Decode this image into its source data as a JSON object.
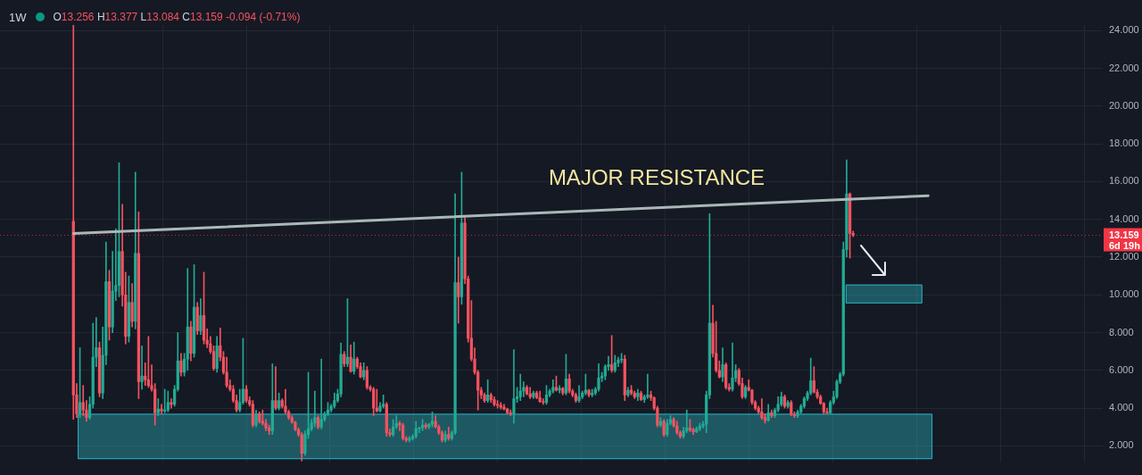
{
  "chart_data": {
    "type": "candlestick",
    "title": "1W",
    "categories": [
      null,
      null,
      null,
      null,
      null,
      null,
      null,
      null,
      null,
      null,
      null,
      null,
      null,
      null,
      null,
      null,
      null,
      null,
      null,
      null,
      null,
      null,
      null,
      null,
      null,
      null,
      null,
      null,
      null,
      null,
      null,
      null,
      null,
      null,
      null,
      null,
      null,
      null,
      null,
      null,
      null,
      null,
      null,
      null,
      null,
      null,
      null,
      null,
      null,
      null,
      null,
      null,
      null,
      null,
      null,
      null,
      null,
      null,
      null,
      null,
      null,
      null,
      null,
      null,
      null,
      null,
      null,
      null,
      null,
      null,
      null,
      null,
      null,
      null,
      null,
      null,
      null,
      null,
      null,
      null,
      null,
      null,
      null,
      null,
      null,
      null,
      null,
      null,
      null,
      null,
      null,
      null,
      null,
      null,
      null,
      null,
      null,
      null,
      null,
      null,
      null,
      null,
      null,
      null,
      null,
      null,
      null,
      null,
      null,
      null,
      null,
      null,
      null,
      null,
      null,
      null,
      null,
      null,
      null,
      null,
      null,
      null,
      null,
      null,
      null,
      null,
      null,
      null,
      null,
      null,
      null,
      null,
      null,
      null,
      null,
      null,
      null,
      null,
      null,
      null,
      null,
      null,
      null,
      null,
      null,
      null,
      null,
      null,
      null,
      null,
      null,
      null,
      null,
      null,
      null,
      null,
      null,
      null,
      null,
      null,
      null,
      null,
      null,
      null,
      null,
      null,
      null,
      null,
      null,
      null,
      null,
      null,
      null,
      null,
      null,
      null,
      null,
      null,
      null,
      null,
      null,
      null,
      null,
      null,
      null,
      null,
      null,
      null,
      null,
      null,
      null,
      null,
      null,
      null,
      null,
      null,
      null,
      null,
      null,
      null,
      null,
      null,
      null,
      null,
      null,
      null,
      null,
      null,
      null,
      null,
      null,
      null,
      null,
      null,
      null,
      null,
      null,
      null,
      null,
      null,
      null,
      null,
      null,
      null,
      null,
      null,
      null,
      null,
      null,
      null,
      null,
      null,
      null,
      null,
      null,
      null,
      null,
      null,
      null,
      null,
      null,
      null,
      null,
      null,
      null,
      null,
      null,
      null,
      null,
      null,
      null,
      null,
      null,
      null,
      null,
      null,
      null,
      null,
      null,
      null,
      null,
      null,
      null,
      null,
      null,
      null,
      null,
      null,
      null,
      null,
      null,
      null,
      null,
      null,
      null,
      null,
      null,
      null,
      null,
      null,
      null,
      null,
      null,
      null,
      null,
      null,
      null,
      null,
      null,
      null,
      null,
      null,
      null,
      null,
      null,
      null,
      null,
      null,
      null,
      null,
      null,
      null,
      null,
      null,
      null,
      null,
      null,
      null,
      null,
      null,
      null,
      null,
      null,
      null,
      null,
      null,
      null,
      null,
      null,
      null,
      null,
      null,
      null,
      null,
      null,
      null,
      null,
      null,
      null,
      null,
      null,
      null,
      null,
      null,
      null,
      null,
      null,
      null
    ],
    "ohlc": [
      null,
      null,
      null,
      null,
      null,
      null,
      null,
      null,
      null,
      null,
      null,
      null,
      null,
      null,
      null,
      null,
      null,
      null,
      null,
      null,
      null,
      null,
      [
        13.9,
        24.3,
        3.4,
        4.7
      ],
      [
        4.7,
        5.3,
        3.5,
        3.7
      ],
      [
        3.7,
        7.2,
        3.5,
        4.3
      ],
      [
        4.3,
        5.2,
        3.6,
        3.9
      ],
      [
        3.9,
        4.4,
        3.3,
        3.5
      ],
      [
        3.5,
        4.6,
        3.4,
        4.2
      ],
      [
        4.2,
        8.5,
        4.0,
        6.7
      ],
      [
        6.7,
        8.8,
        6.2,
        7.2
      ],
      [
        7.2,
        7.5,
        4.6,
        4.8
      ],
      [
        4.8,
        8.3,
        4.5,
        6.8
      ],
      [
        6.8,
        12.8,
        6.3,
        10.7
      ],
      [
        10.7,
        11.3,
        7.6,
        8.3
      ],
      [
        8.3,
        12.3,
        8.0,
        10.2
      ],
      [
        10.2,
        13.5,
        9.7,
        10.5
      ],
      [
        10.5,
        17.0,
        9.9,
        12.3
      ],
      [
        12.3,
        14.8,
        9.4,
        10.0
      ],
      [
        10.0,
        11.2,
        7.4,
        7.8
      ],
      [
        7.8,
        11.0,
        7.5,
        9.6
      ],
      [
        9.6,
        10.6,
        8.3,
        8.6
      ],
      [
        8.6,
        16.5,
        8.2,
        12.2
      ],
      [
        12.2,
        14.4,
        4.5,
        5.4
      ],
      [
        5.4,
        7.3,
        5.0,
        5.7
      ],
      [
        5.7,
        6.4,
        5.2,
        5.5
      ],
      [
        5.5,
        7.8,
        5.1,
        5.2
      ],
      [
        5.2,
        6.3,
        4.9,
        5.0
      ],
      [
        5.0,
        5.3,
        3.1,
        3.75
      ],
      [
        3.75,
        4.5,
        3.6,
        3.95
      ],
      [
        3.95,
        4.2,
        3.7,
        3.85
      ],
      [
        3.85,
        5.0,
        3.75,
        3.9
      ],
      [
        3.9,
        4.9,
        3.8,
        4.3
      ],
      [
        4.3,
        4.5,
        4.0,
        4.2
      ],
      [
        4.2,
        5.2,
        4.1,
        5.0
      ],
      [
        5.0,
        8.0,
        4.9,
        6.5
      ],
      [
        6.5,
        6.9,
        5.7,
        5.9
      ],
      [
        5.9,
        6.9,
        5.7,
        6.6
      ],
      [
        6.6,
        11.4,
        6.0,
        8.3
      ],
      [
        8.3,
        8.6,
        6.5,
        6.9
      ],
      [
        6.9,
        11.6,
        6.7,
        9.35
      ],
      [
        9.35,
        9.6,
        7.9,
        8.1
      ],
      [
        8.1,
        9.8,
        7.9,
        8.9
      ],
      [
        8.9,
        11.2,
        7.4,
        7.6
      ],
      [
        7.6,
        8.2,
        7.2,
        7.4
      ],
      [
        7.4,
        7.8,
        6.9,
        7.0
      ],
      [
        7.0,
        7.3,
        6.0,
        6.1
      ],
      [
        6.1,
        7.8,
        5.9,
        7.3
      ],
      [
        7.3,
        8.25,
        6.5,
        6.7
      ],
      [
        6.7,
        7.0,
        5.8,
        5.9
      ],
      [
        5.9,
        6.7,
        5.1,
        5.2
      ],
      [
        5.2,
        5.5,
        4.9,
        5.0
      ],
      [
        5.0,
        5.2,
        4.3,
        4.4
      ],
      [
        4.4,
        4.7,
        3.8,
        3.9
      ],
      [
        3.9,
        5.0,
        3.8,
        4.3
      ],
      [
        4.3,
        7.7,
        4.2,
        5.0
      ],
      [
        5.0,
        5.2,
        4.3,
        4.4
      ],
      [
        4.4,
        4.6,
        4.1,
        4.2
      ],
      [
        4.2,
        4.4,
        3.0,
        3.1
      ],
      [
        3.1,
        3.9,
        3.0,
        3.7
      ],
      [
        3.7,
        3.8,
        3.2,
        3.3
      ],
      [
        3.3,
        3.9,
        3.1,
        3.2
      ],
      [
        3.2,
        3.4,
        2.8,
        2.95
      ],
      [
        2.95,
        3.1,
        2.6,
        2.8
      ],
      [
        2.8,
        6.35,
        2.6,
        4.4
      ],
      [
        4.4,
        6.2,
        3.9,
        4.0
      ],
      [
        4.0,
        4.8,
        3.9,
        4.4
      ],
      [
        4.4,
        4.5,
        4.0,
        4.1
      ],
      [
        4.1,
        5.0,
        3.7,
        3.8
      ],
      [
        3.8,
        3.9,
        3.4,
        3.5
      ],
      [
        3.5,
        3.6,
        3.2,
        3.25
      ],
      [
        3.25,
        3.3,
        2.8,
        2.85
      ],
      [
        2.85,
        2.95,
        2.5,
        2.6
      ],
      [
        2.6,
        2.7,
        1.2,
        1.6
      ],
      [
        1.6,
        2.8,
        1.5,
        2.6
      ],
      [
        2.6,
        5.9,
        2.4,
        2.9
      ],
      [
        2.9,
        3.4,
        2.8,
        3.2
      ],
      [
        3.2,
        4.9,
        3.0,
        3.5
      ],
      [
        3.5,
        3.6,
        2.9,
        3.0
      ],
      [
        3.0,
        6.6,
        2.9,
        3.4
      ],
      [
        3.4,
        3.8,
        3.3,
        3.7
      ],
      [
        3.7,
        4.3,
        3.6,
        3.9
      ],
      [
        3.9,
        4.2,
        3.8,
        4.1
      ],
      [
        4.1,
        4.8,
        4.0,
        4.4
      ],
      [
        4.4,
        5.0,
        4.3,
        4.75
      ],
      [
        4.75,
        7.45,
        4.6,
        6.85
      ],
      [
        6.85,
        7.0,
        6.2,
        6.35
      ],
      [
        6.35,
        9.8,
        6.2,
        6.7
      ],
      [
        6.7,
        7.35,
        5.9,
        5.95
      ],
      [
        5.95,
        7.5,
        5.8,
        6.6
      ],
      [
        6.6,
        6.7,
        6.1,
        6.2
      ],
      [
        6.2,
        6.4,
        5.6,
        5.65
      ],
      [
        5.65,
        6.4,
        5.5,
        6.0
      ],
      [
        6.0,
        6.2,
        5.0,
        5.1
      ],
      [
        5.1,
        5.2,
        4.9,
        5.0
      ],
      [
        5.0,
        5.1,
        3.6,
        4.0
      ],
      [
        4.0,
        5.0,
        3.8,
        3.85
      ],
      [
        3.85,
        4.3,
        3.8,
        4.1
      ],
      [
        4.1,
        4.7,
        4.0,
        4.2
      ],
      [
        4.2,
        4.3,
        2.5,
        2.7
      ],
      [
        2.7,
        2.9,
        2.5,
        2.6
      ],
      [
        2.6,
        3.4,
        2.5,
        3.0
      ],
      [
        3.0,
        3.6,
        2.9,
        3.2
      ],
      [
        3.2,
        3.3,
        2.8,
        3.1
      ],
      [
        3.1,
        3.2,
        2.3,
        2.4
      ],
      [
        2.4,
        2.5,
        2.2,
        2.3
      ],
      [
        2.3,
        2.5,
        2.2,
        2.4
      ],
      [
        2.4,
        2.6,
        2.3,
        2.5
      ],
      [
        2.5,
        3.3,
        2.4,
        2.9
      ],
      [
        2.9,
        3.0,
        2.7,
        2.95
      ],
      [
        2.95,
        3.4,
        2.8,
        3.1
      ],
      [
        3.1,
        3.2,
        2.9,
        3.0
      ],
      [
        3.0,
        3.2,
        2.9,
        3.15
      ],
      [
        3.15,
        3.8,
        3.0,
        3.3
      ],
      [
        3.3,
        3.6,
        2.95,
        3.0
      ],
      [
        3.0,
        3.1,
        2.6,
        2.7
      ],
      [
        2.7,
        2.8,
        2.2,
        2.3
      ],
      [
        2.3,
        2.8,
        2.2,
        2.6
      ],
      [
        2.6,
        3.0,
        2.3,
        2.4
      ],
      [
        2.4,
        2.8,
        2.3,
        2.7
      ],
      [
        2.7,
        15.35,
        2.6,
        10.65
      ],
      [
        10.65,
        12.0,
        8.5,
        9.9
      ],
      [
        9.9,
        16.5,
        9.5,
        13.8
      ],
      [
        13.8,
        14.1,
        10.6,
        10.85
      ],
      [
        10.85,
        11.0,
        7.5,
        7.7
      ],
      [
        7.7,
        9.7,
        6.5,
        6.6
      ],
      [
        6.6,
        7.2,
        5.8,
        5.9
      ],
      [
        5.9,
        6.0,
        3.9,
        4.95
      ],
      [
        4.95,
        5.1,
        4.5,
        4.7
      ],
      [
        4.7,
        4.8,
        4.3,
        4.4
      ],
      [
        4.4,
        5.5,
        4.3,
        4.7
      ],
      [
        4.7,
        4.8,
        4.3,
        4.45
      ],
      [
        4.45,
        4.6,
        4.1,
        4.2
      ],
      [
        4.2,
        4.4,
        4.0,
        4.15
      ],
      [
        4.15,
        4.3,
        3.95,
        4.05
      ],
      [
        4.05,
        4.2,
        3.9,
        3.95
      ],
      [
        3.95,
        4.0,
        3.7,
        3.75
      ],
      [
        3.75,
        3.9,
        3.6,
        3.7
      ],
      [
        3.7,
        7.1,
        3.2,
        4.5
      ],
      [
        4.5,
        5.1,
        4.3,
        4.6
      ],
      [
        4.6,
        5.8,
        4.4,
        4.9
      ],
      [
        4.9,
        5.4,
        4.6,
        5.1
      ],
      [
        5.1,
        5.2,
        4.7,
        4.75
      ],
      [
        4.75,
        5.1,
        4.5,
        4.6
      ],
      [
        4.6,
        4.9,
        4.5,
        4.8
      ],
      [
        4.8,
        4.9,
        4.5,
        4.55
      ],
      [
        4.55,
        4.9,
        4.3,
        4.35
      ],
      [
        4.35,
        4.5,
        4.2,
        4.3
      ],
      [
        4.3,
        5.2,
        4.2,
        4.7
      ],
      [
        4.7,
        5.0,
        4.6,
        4.9
      ],
      [
        4.9,
        5.5,
        4.8,
        5.1
      ],
      [
        5.1,
        5.7,
        4.9,
        4.95
      ],
      [
        4.95,
        5.2,
        4.8,
        5.05
      ],
      [
        5.05,
        5.1,
        4.7,
        4.8
      ],
      [
        4.8,
        6.85,
        4.7,
        5.55
      ],
      [
        5.55,
        5.8,
        4.8,
        4.9
      ],
      [
        4.9,
        5.0,
        4.6,
        4.7
      ],
      [
        4.7,
        4.8,
        4.3,
        4.4
      ],
      [
        4.4,
        5.2,
        4.3,
        4.6
      ],
      [
        4.6,
        4.9,
        4.5,
        4.8
      ],
      [
        4.8,
        5.8,
        4.7,
        4.95
      ],
      [
        4.95,
        5.0,
        4.6,
        4.7
      ],
      [
        4.7,
        5.0,
        4.6,
        4.8
      ],
      [
        4.8,
        5.1,
        4.7,
        5.0
      ],
      [
        5.0,
        6.35,
        4.9,
        5.6
      ],
      [
        5.6,
        5.9,
        5.4,
        5.7
      ],
      [
        5.7,
        6.3,
        5.5,
        6.2
      ],
      [
        6.2,
        6.75,
        6.0,
        6.3
      ],
      [
        6.3,
        7.85,
        5.9,
        6.0
      ],
      [
        6.0,
        6.8,
        5.9,
        6.4
      ],
      [
        6.4,
        6.7,
        6.2,
        6.55
      ],
      [
        6.55,
        6.9,
        6.4,
        6.6
      ],
      [
        6.6,
        6.8,
        4.4,
        4.7
      ],
      [
        4.7,
        5.1,
        4.6,
        4.95
      ],
      [
        4.95,
        5.2,
        4.7,
        4.8
      ],
      [
        4.8,
        4.9,
        4.5,
        4.6
      ],
      [
        4.6,
        5.0,
        4.4,
        4.8
      ],
      [
        4.8,
        4.9,
        4.4,
        4.45
      ],
      [
        4.45,
        4.7,
        4.3,
        4.6
      ],
      [
        4.6,
        5.8,
        4.5,
        4.7
      ],
      [
        4.7,
        4.9,
        4.4,
        4.55
      ],
      [
        4.55,
        4.6,
        3.9,
        4.0
      ],
      [
        4.0,
        4.1,
        3.0,
        3.1
      ],
      [
        3.1,
        3.5,
        3.0,
        3.3
      ],
      [
        3.3,
        3.4,
        2.5,
        2.6
      ],
      [
        2.6,
        3.4,
        2.5,
        3.2
      ],
      [
        3.2,
        3.6,
        3.1,
        3.4
      ],
      [
        3.4,
        3.5,
        3.0,
        3.05
      ],
      [
        3.05,
        3.3,
        2.6,
        2.7
      ],
      [
        2.7,
        2.8,
        2.4,
        2.5
      ],
      [
        2.5,
        3.0,
        2.4,
        2.8
      ],
      [
        2.8,
        3.9,
        2.7,
        2.95
      ],
      [
        2.95,
        3.4,
        2.75,
        2.85
      ],
      [
        2.85,
        2.95,
        2.6,
        2.75
      ],
      [
        2.75,
        3.0,
        2.7,
        2.9
      ],
      [
        2.9,
        3.2,
        2.8,
        3.05
      ],
      [
        3.05,
        3.3,
        2.95,
        3.15
      ],
      [
        3.15,
        4.9,
        2.7,
        4.7
      ],
      [
        4.7,
        14.3,
        4.5,
        8.5
      ],
      [
        8.5,
        9.45,
        6.7,
        6.9
      ],
      [
        6.9,
        8.6,
        5.9,
        6.0
      ],
      [
        6.0,
        6.5,
        5.6,
        5.65
      ],
      [
        5.65,
        7.2,
        5.4,
        6.3
      ],
      [
        6.3,
        6.4,
        5.0,
        5.1
      ],
      [
        5.1,
        5.3,
        4.9,
        5.0
      ],
      [
        5.0,
        7.45,
        4.9,
        5.6
      ],
      [
        5.6,
        6.3,
        5.4,
        6.0
      ],
      [
        6.0,
        6.1,
        5.2,
        5.3
      ],
      [
        5.3,
        5.6,
        4.5,
        4.6
      ],
      [
        4.6,
        5.2,
        4.5,
        5.1
      ],
      [
        5.1,
        5.5,
        4.9,
        4.95
      ],
      [
        4.95,
        5.0,
        4.2,
        4.3
      ],
      [
        4.3,
        4.4,
        3.9,
        4.0
      ],
      [
        4.0,
        4.1,
        3.7,
        3.8
      ],
      [
        3.8,
        4.5,
        3.4,
        3.5
      ],
      [
        3.5,
        3.7,
        3.2,
        3.35
      ],
      [
        3.35,
        4.2,
        3.3,
        3.75
      ],
      [
        3.75,
        3.9,
        3.5,
        3.6
      ],
      [
        3.6,
        4.0,
        3.5,
        3.9
      ],
      [
        3.9,
        4.6,
        3.8,
        4.2
      ],
      [
        4.2,
        4.85,
        4.1,
        4.6
      ],
      [
        4.6,
        4.7,
        4.0,
        4.1
      ],
      [
        4.1,
        4.4,
        4.0,
        4.3
      ],
      [
        4.3,
        4.4,
        3.6,
        3.65
      ],
      [
        3.65,
        3.8,
        3.5,
        3.6
      ],
      [
        3.6,
        3.9,
        3.5,
        3.8
      ],
      [
        3.8,
        4.2,
        3.7,
        4.1
      ],
      [
        4.1,
        4.6,
        4.0,
        4.5
      ],
      [
        4.5,
        4.9,
        4.4,
        4.8
      ],
      [
        4.8,
        6.65,
        4.7,
        5.45
      ],
      [
        5.45,
        6.2,
        4.8,
        4.85
      ],
      [
        4.85,
        5.0,
        4.5,
        4.6
      ],
      [
        4.6,
        4.7,
        4.2,
        4.25
      ],
      [
        4.25,
        4.3,
        3.7,
        3.8
      ],
      [
        3.8,
        4.0,
        3.7,
        3.75
      ],
      [
        3.75,
        4.4,
        3.7,
        4.3
      ],
      [
        4.3,
        4.9,
        4.2,
        4.6
      ],
      [
        4.6,
        5.5,
        4.5,
        5.4
      ],
      [
        5.4,
        5.9,
        5.3,
        5.8
      ],
      [
        5.8,
        12.8,
        5.7,
        12.4
      ],
      [
        12.4,
        17.15,
        12.0,
        15.35
      ],
      [
        15.35,
        15.4,
        11.95,
        13.256
      ],
      [
        13.256,
        13.377,
        13.084,
        13.159
      ],
      null,
      null,
      null,
      null,
      null,
      null,
      null,
      null,
      null,
      null,
      null,
      null,
      null,
      null,
      null,
      null,
      null,
      null,
      null,
      null,
      null,
      null,
      null,
      null,
      null,
      null,
      null,
      null,
      null,
      null,
      null,
      null,
      null,
      null,
      null,
      null,
      null,
      null,
      null,
      null,
      null,
      null,
      null,
      null,
      null,
      null,
      null,
      null,
      null,
      null,
      null,
      null,
      null,
      null,
      null,
      null,
      null,
      null,
      null,
      null,
      null,
      null,
      null,
      null,
      null,
      null,
      null,
      null,
      null,
      null,
      null,
      null,
      null,
      null,
      null,
      null
    ],
    "series": [
      {
        "type": "line",
        "color": "#aab8b8",
        "values": [
          null,
          null,
          null,
          null,
          null,
          null,
          null,
          null,
          null,
          null,
          null,
          null,
          null,
          null,
          null,
          null,
          null,
          null,
          null,
          null,
          null,
          null,
          13.25,
          null,
          null,
          null,
          null,
          null,
          null,
          null,
          null,
          null,
          null,
          null,
          null,
          null,
          null,
          null,
          null,
          null,
          null,
          null,
          null,
          null,
          null,
          null,
          null,
          null,
          null,
          null,
          null,
          null,
          null,
          null,
          null,
          null,
          null,
          null,
          null,
          null,
          null,
          null,
          null,
          null,
          null,
          null,
          null,
          null,
          null,
          null,
          null,
          null,
          null,
          null,
          null,
          null,
          null,
          null,
          null,
          null,
          null,
          null,
          null,
          null,
          null,
          null,
          null,
          null,
          null,
          null,
          null,
          null,
          null,
          null,
          null,
          null,
          null,
          null,
          null,
          null,
          null,
          null,
          null,
          null,
          null,
          null,
          null,
          null,
          null,
          null,
          null,
          null,
          null,
          null,
          null,
          null,
          null,
          null,
          null,
          null,
          null,
          null,
          null,
          null,
          null,
          null,
          null,
          null,
          null,
          null,
          null,
          null,
          null,
          null,
          null,
          null,
          null,
          null,
          null,
          null,
          null,
          null,
          null,
          null,
          null,
          null,
          null,
          null,
          null,
          null,
          null,
          null,
          null,
          null,
          null,
          null,
          null,
          null,
          null,
          null,
          null,
          null,
          null,
          null,
          null,
          null,
          null,
          null,
          null,
          null,
          null,
          null,
          null,
          null,
          null,
          null,
          null,
          null,
          null,
          null,
          null,
          null,
          null,
          null,
          null,
          null,
          null,
          null,
          null,
          null,
          null,
          null,
          null,
          null,
          null,
          null,
          null,
          null,
          null,
          null,
          null,
          null,
          null,
          null,
          null,
          null,
          null,
          null,
          null,
          null,
          null,
          null,
          null,
          null,
          null,
          null,
          null,
          null,
          null,
          null,
          null,
          null,
          null,
          null,
          null,
          null,
          null,
          null,
          null,
          null,
          null,
          null,
          null,
          null,
          null,
          null,
          null,
          null,
          null,
          null,
          null,
          null,
          null,
          null,
          null,
          null,
          null,
          null,
          null,
          null,
          null,
          null,
          null,
          null,
          null,
          null,
          null,
          null,
          null,
          null,
          null,
          null,
          null,
          null,
          null,
          null,
          null,
          null,
          null,
          null,
          null,
          null,
          null,
          null,
          null,
          null,
          null,
          null,
          null,
          null,
          null,
          null,
          null,
          null,
          15.25,
          null,
          null,
          null,
          null,
          null,
          null,
          null,
          null,
          null,
          null,
          null,
          null,
          null,
          null,
          null,
          null,
          null,
          null,
          null,
          null,
          null,
          null,
          null,
          null,
          null,
          null,
          null,
          null,
          null,
          null,
          null,
          null,
          null,
          null,
          null,
          null,
          null,
          null,
          null,
          null,
          null,
          null,
          null,
          null,
          null,
          null,
          null,
          null,
          null,
          null,
          null,
          null,
          null
        ]
      }
    ],
    "ylim": [
      1.1,
      24.3
    ],
    "yticks": [
      {
        "value": 2,
        "label": "2.000"
      },
      {
        "value": 4,
        "label": "4.000"
      },
      {
        "value": 6,
        "label": "6.000"
      },
      {
        "value": 8,
        "label": "8.000"
      },
      {
        "value": 10,
        "label": "10.000"
      },
      {
        "value": 12,
        "label": "12.000"
      },
      {
        "value": 14,
        "label": "14.000"
      },
      {
        "value": 16,
        "label": "16.000"
      },
      {
        "value": 18,
        "label": "18.000"
      },
      {
        "value": 20,
        "label": "20.000"
      },
      {
        "value": 22,
        "label": "22.000"
      },
      {
        "value": 24,
        "label": "24.000"
      }
    ],
    "grid": true,
    "tick_labels": "y",
    "ref_lines": [
      {
        "axis": "y",
        "value": 13.159,
        "label": "13.159",
        "color": "#f23645",
        "line_style": "dotted"
      }
    ],
    "bands": [
      {
        "axis": "y",
        "from": 1.3,
        "to": 3.7,
        "color": "#2ab0bd"
      },
      {
        "axis": "y",
        "from": 9.55,
        "to": 10.55,
        "color": "#2ab0bd"
      }
    ],
    "annotations": [
      "O13.256 H13.377 L13.084 C13.159 -0.094 (-0.71%)",
      "6d 19h",
      "MAJOR RESISTANCE"
    ]
  }
}
